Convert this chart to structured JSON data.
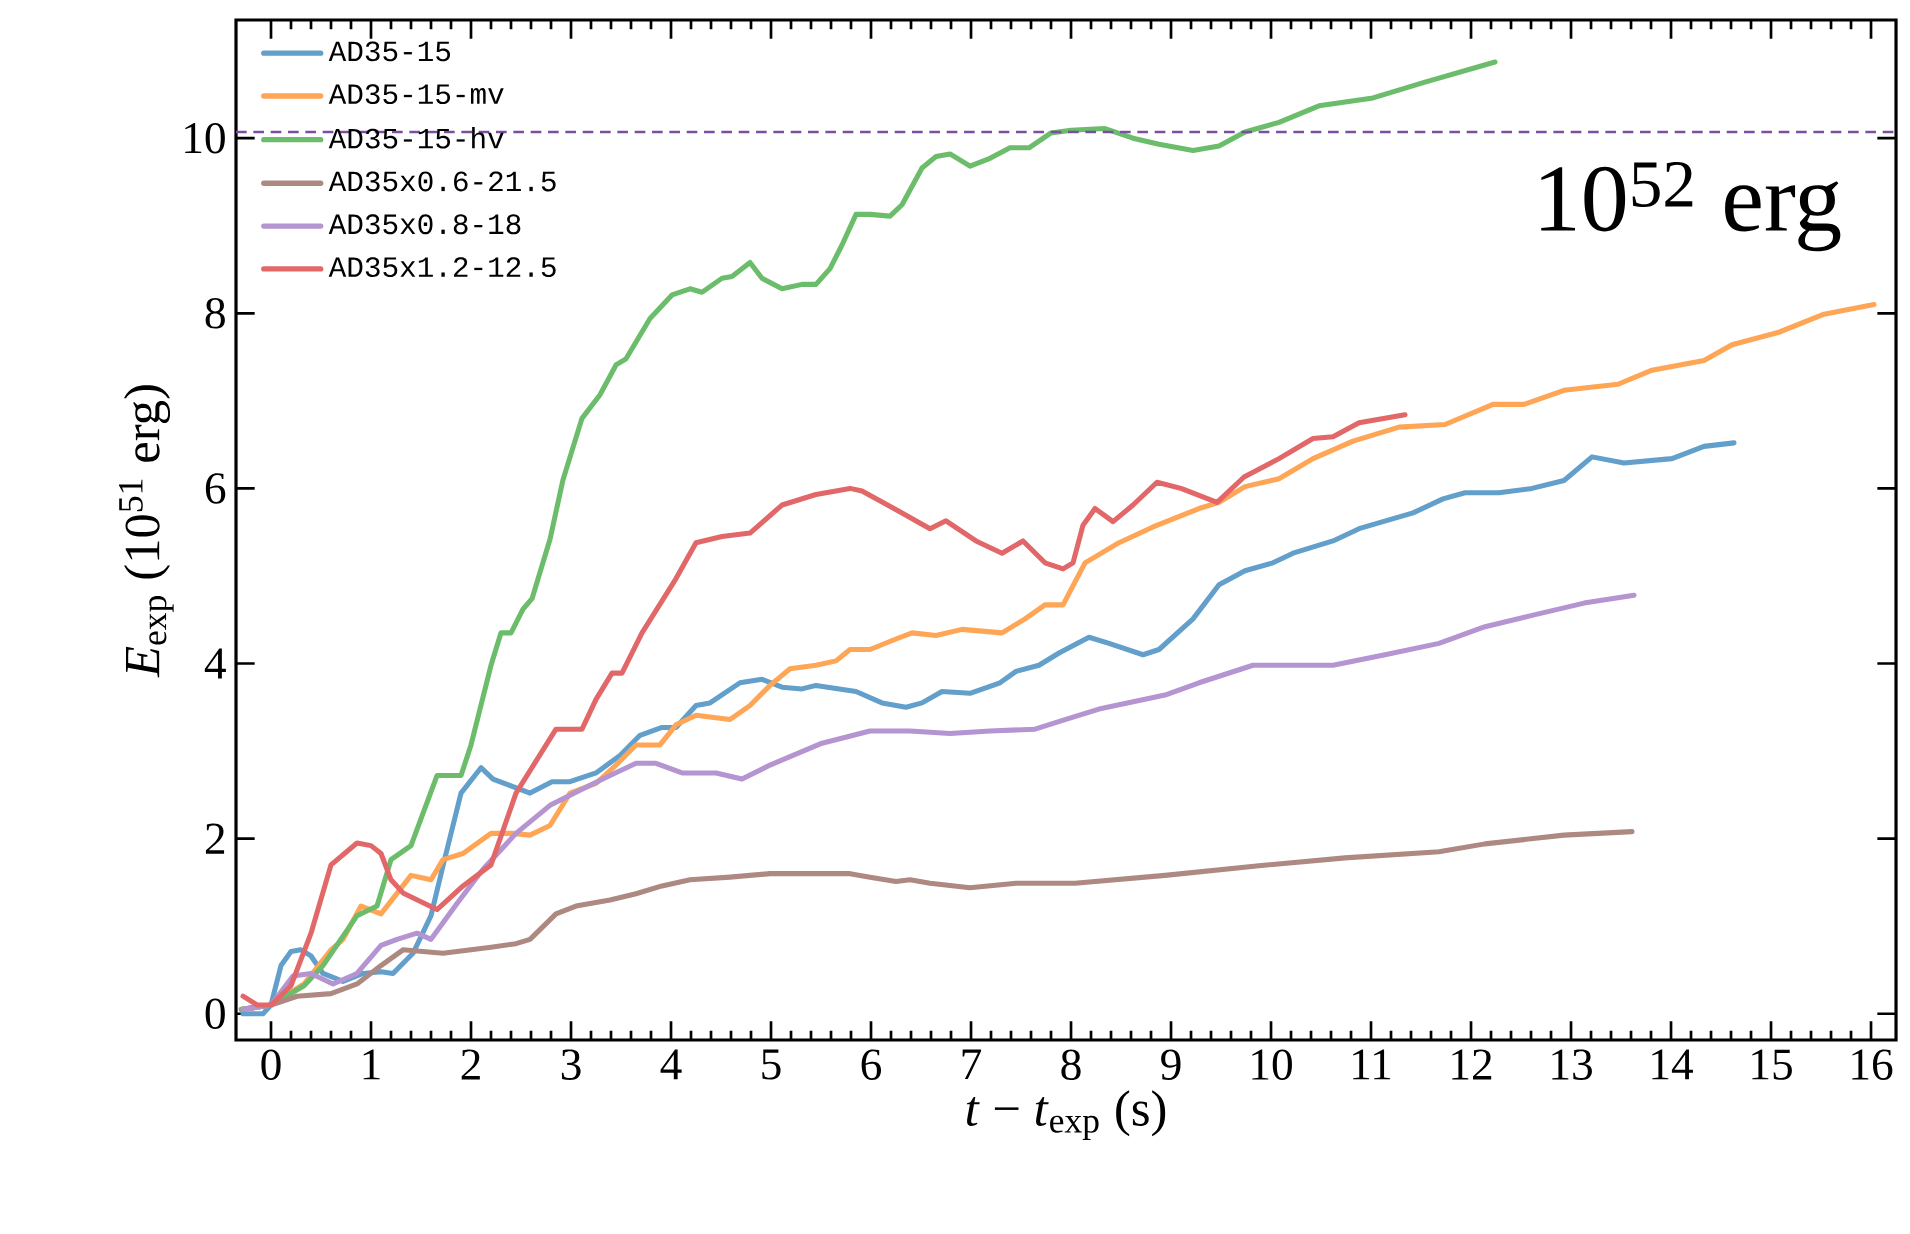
{
  "chart_data": {
    "type": "line",
    "xlabel": "*t* − *t*$_{exp}$ (s)",
    "ylabel": "*E*$_{exp}$ (10$^{51}$ erg)",
    "xlim": [
      -0.35,
      16.25
    ],
    "ylim": [
      -0.3,
      11.35
    ],
    "xticks": [
      0,
      1,
      2,
      3,
      4,
      5,
      6,
      7,
      8,
      9,
      10,
      11,
      12,
      13,
      14,
      15,
      16
    ],
    "yticks": [
      0,
      2,
      4,
      6,
      8,
      10
    ],
    "legend": "top left",
    "marker": "none",
    "line_style": "solid",
    "ref_lines": [
      {
        "axis": "y",
        "value": 10.07,
        "label": "10$^{52}$ erg",
        "color": "#7b4fa0",
        "line_style": "dashed"
      }
    ],
    "series": [
      {
        "name": "AD35-15",
        "color": "#629fca",
        "x": [
          -0.28,
          -0.08,
          0,
          0.1,
          0.2,
          0.3,
          0.4,
          0.52,
          0.72,
          0.92,
          1.1,
          1.22,
          1.42,
          1.6,
          1.72,
          1.9,
          2.1,
          2.22,
          2.59,
          2.81,
          2.99,
          3.25,
          3.49,
          3.69,
          3.91,
          4.05,
          4.25,
          4.39,
          4.69,
          4.91,
          5.11,
          5.31,
          5.45,
          5.85,
          6.11,
          6.35,
          6.51,
          6.71,
          6.99,
          7.29,
          7.45,
          7.68,
          7.88,
          8.18,
          8.38,
          8.72,
          8.88,
          9.22,
          9.48,
          9.74,
          10.02,
          10.22,
          10.62,
          10.88,
          11.42,
          11.72,
          11.94,
          12.28,
          12.61,
          12.93,
          13.21,
          13.53,
          14.01,
          14.33,
          14.63
        ],
        "values": [
          0,
          0,
          0.1,
          0.55,
          0.71,
          0.73,
          0.66,
          0.46,
          0.37,
          0.46,
          0.48,
          0.46,
          0.69,
          1.12,
          1.69,
          2.52,
          2.81,
          2.68,
          2.52,
          2.65,
          2.65,
          2.75,
          2.95,
          3.18,
          3.27,
          3.27,
          3.52,
          3.55,
          3.78,
          3.82,
          3.73,
          3.71,
          3.75,
          3.68,
          3.55,
          3.5,
          3.55,
          3.68,
          3.66,
          3.78,
          3.91,
          3.98,
          4.12,
          4.3,
          4.23,
          4.1,
          4.16,
          4.51,
          4.9,
          5.06,
          5.15,
          5.26,
          5.4,
          5.54,
          5.72,
          5.88,
          5.95,
          5.95,
          6.0,
          6.09,
          6.36,
          6.29,
          6.34,
          6.48,
          6.52
        ]
      },
      {
        "name": "AD35-15-mv",
        "color": "#ffa556",
        "x": [
          -0.28,
          0,
          0.33,
          0.6,
          0.72,
          0.9,
          1.1,
          1.4,
          1.6,
          1.72,
          1.92,
          2.2,
          2.42,
          2.59,
          2.79,
          2.99,
          3.25,
          3.45,
          3.65,
          3.89,
          4.05,
          4.25,
          4.59,
          4.79,
          4.99,
          5.19,
          5.45,
          5.65,
          5.79,
          5.99,
          6.25,
          6.41,
          6.65,
          6.91,
          7.31,
          7.54,
          7.74,
          7.92,
          8.14,
          8.48,
          8.82,
          9.28,
          9.48,
          9.74,
          10.08,
          10.42,
          10.82,
          11.28,
          11.74,
          12.22,
          12.53,
          12.93,
          13.47,
          13.81,
          14.33,
          14.61,
          15.07,
          15.53,
          16.03
        ],
        "values": [
          0.05,
          0.1,
          0.34,
          0.73,
          0.85,
          1.23,
          1.14,
          1.58,
          1.53,
          1.76,
          1.83,
          2.06,
          2.06,
          2.04,
          2.15,
          2.52,
          2.63,
          2.84,
          3.07,
          3.07,
          3.3,
          3.41,
          3.36,
          3.52,
          3.75,
          3.94,
          3.98,
          4.03,
          4.16,
          4.16,
          4.28,
          4.35,
          4.32,
          4.39,
          4.35,
          4.51,
          4.67,
          4.67,
          5.15,
          5.38,
          5.56,
          5.77,
          5.84,
          6.02,
          6.11,
          6.34,
          6.54,
          6.7,
          6.73,
          6.96,
          6.96,
          7.12,
          7.19,
          7.35,
          7.46,
          7.64,
          7.78,
          7.99,
          8.1
        ]
      },
      {
        "name": "AD35-15-hv",
        "color": "#6bbc6b",
        "x": [
          -0.3,
          0,
          0.33,
          0.52,
          0.86,
          1.06,
          1.2,
          1.4,
          1.66,
          1.9,
          2.0,
          2.2,
          2.3,
          2.4,
          2.52,
          2.61,
          2.79,
          2.92,
          3.11,
          3.29,
          3.45,
          3.55,
          3.79,
          4.01,
          4.19,
          4.31,
          4.51,
          4.61,
          4.79,
          4.91,
          5.11,
          5.31,
          5.45,
          5.59,
          5.71,
          5.85,
          5.99,
          6.19,
          6.31,
          6.51,
          6.65,
          6.79,
          6.99,
          7.19,
          7.39,
          7.58,
          7.8,
          8.0,
          8.34,
          8.62,
          8.88,
          9.22,
          9.48,
          9.74,
          10.08,
          10.48,
          11.02,
          11.54,
          12.24
        ],
        "values": [
          0.05,
          0.1,
          0.32,
          0.55,
          1.12,
          1.23,
          1.76,
          1.92,
          2.72,
          2.72,
          3.07,
          3.98,
          4.35,
          4.35,
          4.62,
          4.74,
          5.42,
          6.1,
          6.8,
          7.07,
          7.41,
          7.48,
          7.94,
          8.21,
          8.28,
          8.24,
          8.4,
          8.42,
          8.58,
          8.4,
          8.28,
          8.33,
          8.33,
          8.51,
          8.78,
          9.13,
          9.13,
          9.11,
          9.24,
          9.66,
          9.79,
          9.82,
          9.68,
          9.77,
          9.89,
          9.89,
          10.06,
          10.09,
          10.11,
          10.0,
          9.93,
          9.86,
          9.91,
          10.07,
          10.18,
          10.37,
          10.46,
          10.64,
          10.87
        ]
      },
      {
        "name": "AD35x0.6-21.5",
        "color": "#ae8981",
        "x": [
          -0.28,
          0,
          0.26,
          0.6,
          0.86,
          1.1,
          1.32,
          1.72,
          2.2,
          2.45,
          2.59,
          2.85,
          3.05,
          3.39,
          3.65,
          3.91,
          4.19,
          4.59,
          4.99,
          5.39,
          5.79,
          5.99,
          6.25,
          6.39,
          6.59,
          6.99,
          7.45,
          8.04,
          8.94,
          9.88,
          10.74,
          11.68,
          12.14,
          12.93,
          13.61
        ],
        "values": [
          0.05,
          0.1,
          0.2,
          0.23,
          0.34,
          0.55,
          0.73,
          0.69,
          0.76,
          0.8,
          0.85,
          1.14,
          1.23,
          1.3,
          1.37,
          1.46,
          1.53,
          1.56,
          1.6,
          1.6,
          1.6,
          1.56,
          1.51,
          1.53,
          1.49,
          1.44,
          1.49,
          1.49,
          1.58,
          1.69,
          1.78,
          1.85,
          1.94,
          2.04,
          2.08
        ]
      },
      {
        "name": "AD35x0.8-18",
        "color": "#b494d1",
        "x": [
          -0.28,
          0,
          0.22,
          0.4,
          0.62,
          0.86,
          1.1,
          1.26,
          1.46,
          1.6,
          1.86,
          2.12,
          2.45,
          2.79,
          3.19,
          3.39,
          3.65,
          3.85,
          4.11,
          4.45,
          4.71,
          4.99,
          5.51,
          5.99,
          6.39,
          6.79,
          7.19,
          7.64,
          7.94,
          8.28,
          8.94,
          9.28,
          9.82,
          10.08,
          10.62,
          11.14,
          11.68,
          12.14,
          12.61,
          13.13,
          13.63
        ],
        "values": [
          0.05,
          0.1,
          0.43,
          0.46,
          0.34,
          0.46,
          0.78,
          0.85,
          0.92,
          0.85,
          1.26,
          1.65,
          2.06,
          2.38,
          2.61,
          2.72,
          2.86,
          2.86,
          2.75,
          2.75,
          2.68,
          2.84,
          3.09,
          3.23,
          3.23,
          3.2,
          3.23,
          3.25,
          3.36,
          3.48,
          3.64,
          3.78,
          3.98,
          3.98,
          3.98,
          4.1,
          4.23,
          4.42,
          4.55,
          4.69,
          4.78
        ]
      },
      {
        "name": "AD35x1.2-12.5",
        "color": "#e26768",
        "x": [
          -0.28,
          -0.14,
          0,
          0.2,
          0.4,
          0.6,
          0.86,
          1.0,
          1.1,
          1.2,
          1.32,
          1.66,
          1.92,
          2.2,
          2.45,
          2.85,
          3.11,
          3.25,
          3.41,
          3.51,
          3.71,
          4.05,
          4.25,
          4.51,
          4.79,
          5.11,
          5.45,
          5.79,
          5.91,
          6.31,
          6.59,
          6.75,
          7.05,
          7.31,
          7.52,
          7.74,
          7.92,
          8.02,
          8.12,
          8.24,
          8.42,
          8.62,
          8.86,
          9.1,
          9.46,
          9.73,
          10.08,
          10.42,
          10.62,
          10.88,
          11.34
        ],
        "values": [
          0.2,
          0.1,
          0.1,
          0.32,
          0.92,
          1.7,
          1.95,
          1.92,
          1.83,
          1.53,
          1.38,
          1.19,
          1.46,
          1.7,
          2.52,
          3.25,
          3.25,
          3.59,
          3.89,
          3.89,
          4.35,
          4.97,
          5.38,
          5.45,
          5.49,
          5.81,
          5.93,
          6.0,
          5.97,
          5.72,
          5.54,
          5.63,
          5.4,
          5.26,
          5.4,
          5.15,
          5.08,
          5.15,
          5.58,
          5.77,
          5.62,
          5.81,
          6.07,
          6.0,
          5.84,
          6.13,
          6.34,
          6.57,
          6.59,
          6.75,
          6.84
        ]
      }
    ]
  }
}
